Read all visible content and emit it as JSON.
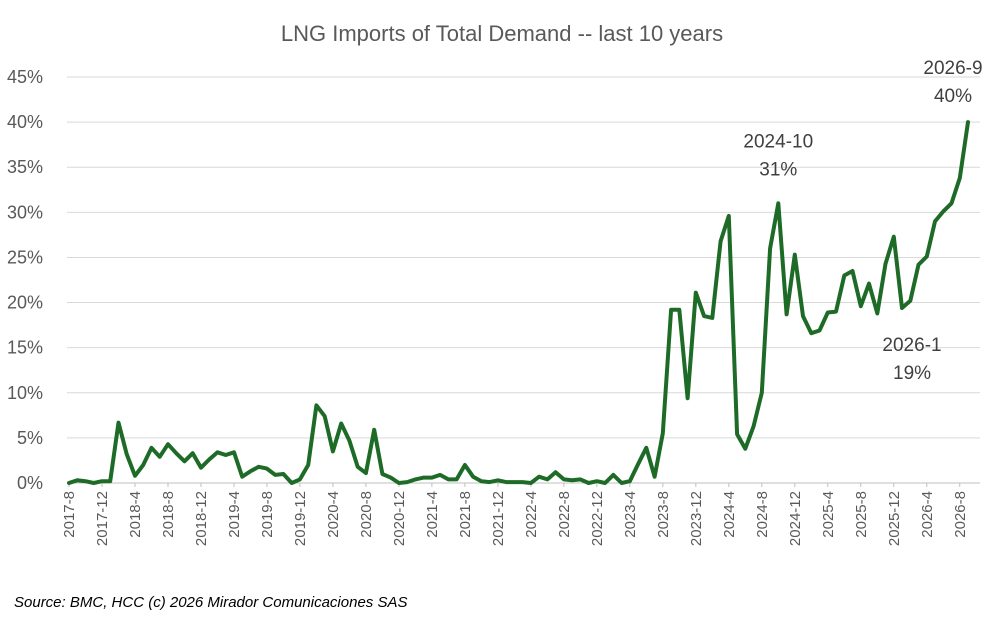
{
  "chart_data": {
    "type": "line",
    "title": "LNG Imports of Total Demand -- last 10 years",
    "xlabel": "",
    "ylabel": "",
    "ylim": [
      0,
      45
    ],
    "grid": true,
    "legend": "none",
    "y_ticks": [
      "0%",
      "5%",
      "10%",
      "15%",
      "20%",
      "25%",
      "30%",
      "35%",
      "40%",
      "45%"
    ],
    "x_tick_labels": [
      "2017-8",
      "2017-12",
      "2018-4",
      "2018-8",
      "2018-12",
      "2019-4",
      "2019-8",
      "2019-12",
      "2020-4",
      "2020-8",
      "2020-12",
      "2021-4",
      "2021-8",
      "2021-12",
      "2022-4",
      "2022-8",
      "2022-12",
      "2023-4",
      "2023-8",
      "2023-12",
      "2024-4",
      "2024-8",
      "2024-12",
      "2025-4",
      "2025-8",
      "2025-12",
      "2026-4",
      "2026-8"
    ],
    "line_color": "#1e6b28",
    "series": [
      {
        "x": [
          "2017-8",
          "2017-9",
          "2017-10",
          "2017-11",
          "2017-12",
          "2018-1",
          "2018-2",
          "2018-3",
          "2018-4",
          "2018-5",
          "2018-6",
          "2018-7",
          "2018-8",
          "2018-9",
          "2018-10",
          "2018-11",
          "2018-12",
          "2019-1",
          "2019-2",
          "2019-3",
          "2019-4",
          "2019-5",
          "2019-6",
          "2019-7",
          "2019-8",
          "2019-9",
          "2019-10",
          "2019-11",
          "2019-12",
          "2020-1",
          "2020-2",
          "2020-3",
          "2020-4",
          "2020-5",
          "2020-6",
          "2020-7",
          "2020-8",
          "2020-9",
          "2020-10",
          "2020-11",
          "2020-12",
          "2021-1",
          "2021-2",
          "2021-3",
          "2021-4",
          "2021-5",
          "2021-6",
          "2021-7",
          "2021-8",
          "2021-9",
          "2021-10",
          "2021-11",
          "2021-12",
          "2022-1",
          "2022-2",
          "2022-3",
          "2022-4",
          "2022-5",
          "2022-6",
          "2022-7",
          "2022-8",
          "2022-9",
          "2022-10",
          "2022-11",
          "2022-12",
          "2023-1",
          "2023-2",
          "2023-3",
          "2023-4",
          "2023-5",
          "2023-6",
          "2023-7",
          "2023-8",
          "2023-9",
          "2023-10",
          "2023-11",
          "2023-12",
          "2024-1",
          "2024-2",
          "2024-3",
          "2024-4",
          "2024-5",
          "2024-6",
          "2024-7",
          "2024-8",
          "2024-9",
          "2024-10",
          "2024-11",
          "2024-12",
          "2025-1",
          "2025-2",
          "2025-3",
          "2025-4",
          "2025-5",
          "2025-6",
          "2025-7",
          "2025-8",
          "2025-9",
          "2025-10",
          "2025-11",
          "2025-12",
          "2026-1",
          "2026-2",
          "2026-3",
          "2026-4",
          "2026-5",
          "2026-6",
          "2026-7",
          "2026-8",
          "2026-9"
        ],
        "values": [
          0,
          0.3,
          0.2,
          0,
          0.2,
          0.2,
          6.7,
          3.2,
          0.8,
          2.0,
          3.9,
          2.9,
          4.3,
          3.3,
          2.4,
          3.3,
          1.7,
          2.6,
          3.4,
          3.1,
          3.4,
          0.7,
          1.3,
          1.8,
          1.6,
          0.9,
          1.0,
          0,
          0.4,
          2.0,
          8.6,
          7.4,
          3.5,
          6.6,
          4.7,
          1.8,
          1.1,
          5.9,
          1.0,
          0.6,
          0,
          0.1,
          0.4,
          0.6,
          0.6,
          0.9,
          0.4,
          0.4,
          2.0,
          0.7,
          0.2,
          0.1,
          0.3,
          0.1,
          0.1,
          0.1,
          0,
          0.7,
          0.4,
          1.2,
          0.4,
          0.3,
          0.4,
          0,
          0.2,
          0,
          0.9,
          0,
          0.2,
          2.1,
          3.9,
          0.7,
          5.5,
          19.2,
          19.2,
          9.4,
          21.1,
          18.5,
          18.3,
          26.8,
          29.6,
          5.4,
          3.8,
          6.3,
          10.0,
          26.0,
          31.0,
          18.7,
          25.3,
          18.5,
          16.6,
          16.9,
          18.9,
          19.0,
          23.0,
          23.5,
          19.6,
          22.1,
          18.8,
          24.3,
          27.3,
          19.4,
          20.2,
          24.2,
          25.1,
          29.0,
          30.1,
          31.0,
          33.8,
          40.0
        ]
      }
    ],
    "annotations": [
      {
        "label": "2024-10",
        "value_label": "31%"
      },
      {
        "label": "2026-1",
        "value_label": "19%"
      },
      {
        "label": "2026-9",
        "value_label": "40%"
      }
    ]
  },
  "footer": {
    "source": "Source: BMC, HCC (c) 2026 Mirador Comunicaciones SAS"
  }
}
